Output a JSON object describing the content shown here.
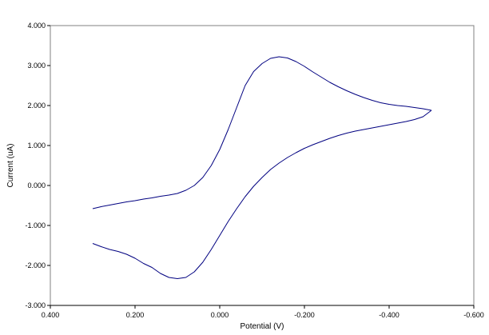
{
  "chart_data": {
    "type": "line",
    "title": "",
    "xlabel": "Potential (V)",
    "ylabel": "Current (uA)",
    "x_reversed": true,
    "xlim": [
      0.4,
      -0.6
    ],
    "ylim": [
      -3.0,
      4.0
    ],
    "x_ticks": [
      {
        "value": 0.4,
        "label": "0.400"
      },
      {
        "value": 0.2,
        "label": "0.200"
      },
      {
        "value": 0.0,
        "label": "0.000"
      },
      {
        "value": -0.2,
        "label": "-0.200"
      },
      {
        "value": -0.4,
        "label": "-0.400"
      },
      {
        "value": -0.6,
        "label": "-0.600"
      }
    ],
    "y_ticks": [
      {
        "value": 4.0,
        "label": "4.000"
      },
      {
        "value": 3.0,
        "label": "3.000"
      },
      {
        "value": 2.0,
        "label": "2.000"
      },
      {
        "value": 1.0,
        "label": "1.000"
      },
      {
        "value": 0.0,
        "label": "0.000"
      },
      {
        "value": -1.0,
        "label": "-1.000"
      },
      {
        "value": -2.0,
        "label": "-2.000"
      },
      {
        "value": -3.0,
        "label": "-3.000"
      }
    ],
    "grid": false,
    "legend": "none",
    "line_color": "#000080",
    "series": [
      {
        "x": [
          0.3,
          0.28,
          0.26,
          0.24,
          0.22,
          0.2,
          0.18,
          0.16,
          0.14,
          0.12,
          0.1,
          0.08,
          0.06,
          0.04,
          0.02,
          0.0,
          -0.02,
          -0.04,
          -0.06,
          -0.08,
          -0.1,
          -0.12,
          -0.14,
          -0.16,
          -0.18,
          -0.2,
          -0.22,
          -0.24,
          -0.26,
          -0.28,
          -0.3,
          -0.32,
          -0.34,
          -0.36,
          -0.38,
          -0.4,
          -0.42,
          -0.44,
          -0.46,
          -0.48,
          -0.5
        ],
        "y": [
          -0.58,
          -0.53,
          -0.49,
          -0.45,
          -0.41,
          -0.38,
          -0.34,
          -0.31,
          -0.27,
          -0.24,
          -0.2,
          -0.12,
          0.0,
          0.2,
          0.5,
          0.9,
          1.4,
          1.95,
          2.5,
          2.85,
          3.05,
          3.18,
          3.22,
          3.19,
          3.1,
          2.98,
          2.84,
          2.71,
          2.58,
          2.47,
          2.37,
          2.28,
          2.2,
          2.13,
          2.07,
          2.03,
          2.0,
          1.98,
          1.95,
          1.92,
          1.88
        ]
      },
      {
        "x": [
          -0.5,
          -0.48,
          -0.46,
          -0.44,
          -0.42,
          -0.4,
          -0.38,
          -0.36,
          -0.34,
          -0.32,
          -0.3,
          -0.28,
          -0.26,
          -0.24,
          -0.22,
          -0.2,
          -0.18,
          -0.16,
          -0.14,
          -0.12,
          -0.1,
          -0.08,
          -0.06,
          -0.04,
          -0.02,
          0.0,
          0.02,
          0.04,
          0.06,
          0.08,
          0.1,
          0.12,
          0.14,
          0.16,
          0.18,
          0.2,
          0.22,
          0.24,
          0.26,
          0.28,
          0.3
        ],
        "y": [
          1.88,
          1.72,
          1.65,
          1.6,
          1.56,
          1.52,
          1.48,
          1.44,
          1.4,
          1.36,
          1.31,
          1.25,
          1.18,
          1.1,
          1.02,
          0.93,
          0.82,
          0.7,
          0.56,
          0.4,
          0.2,
          -0.02,
          -0.28,
          -0.58,
          -0.9,
          -1.25,
          -1.6,
          -1.92,
          -2.16,
          -2.3,
          -2.33,
          -2.3,
          -2.2,
          -2.05,
          -1.95,
          -1.82,
          -1.72,
          -1.65,
          -1.6,
          -1.53,
          -1.45
        ]
      }
    ]
  }
}
